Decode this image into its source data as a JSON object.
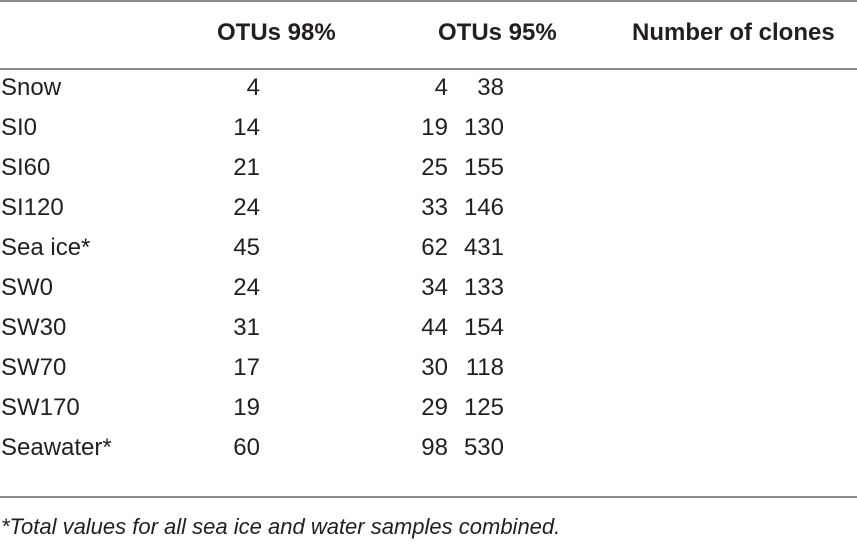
{
  "table": {
    "headers": [
      "",
      "OTUs 98%",
      "OTUs 95%",
      "Number of clones"
    ],
    "rows": [
      {
        "sample": "Snow",
        "otu98": "4",
        "otu95": "4",
        "clones": "38"
      },
      {
        "sample": "SI0",
        "otu98": "19",
        "otu95": "14",
        "clones": "130"
      },
      {
        "sample": "SI60",
        "otu98": "25",
        "otu95": "21",
        "clones": "155"
      },
      {
        "sample": "SI120",
        "otu98": "33",
        "otu95": "24",
        "clones": "146"
      },
      {
        "sample": "Sea ice*",
        "otu98": "62",
        "otu95": "45",
        "clones": "431"
      },
      {
        "sample": "SW0",
        "otu98": "34",
        "otu95": "24",
        "clones": "133"
      },
      {
        "sample": "SW30",
        "otu98": "44",
        "otu95": "31",
        "clones": "154"
      },
      {
        "sample": "SW70",
        "otu98": "30",
        "otu95": "17",
        "clones": "118"
      },
      {
        "sample": "SW170",
        "otu98": "29",
        "otu95": "19",
        "clones": "125"
      },
      {
        "sample": "Seawater*",
        "otu98": "98",
        "otu95": "60",
        "clones": "530"
      }
    ]
  },
  "footnote": "*Total values for all sea ice and water samples combined."
}
